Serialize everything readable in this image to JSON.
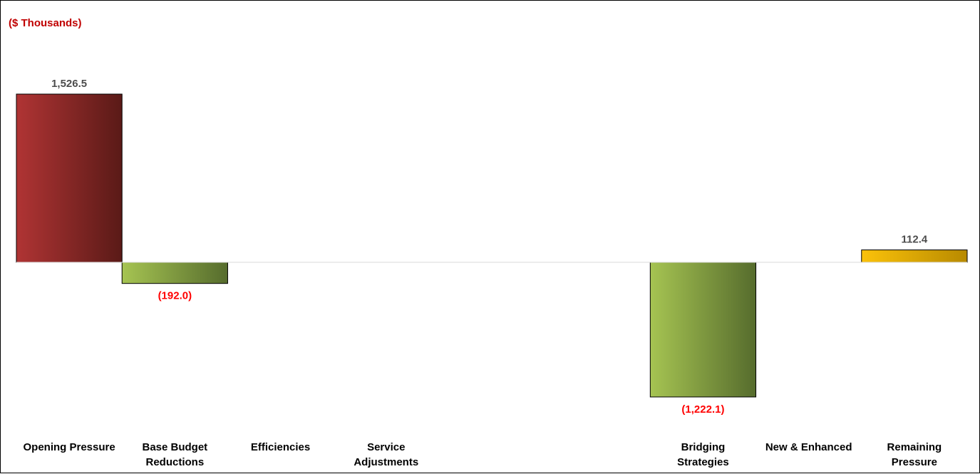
{
  "chart_data": {
    "type": "bar",
    "title": "",
    "unit_label": "($ Thousands)",
    "categories": [
      "Opening Pressure",
      "Base Budget Reductions",
      "Efficiencies",
      "Service Adjustments",
      "",
      "",
      "Bridging Strategies",
      "New & Enhanced",
      "Remaining Pressure"
    ],
    "category_lines": [
      [
        "Opening Pressure"
      ],
      [
        "Base Budget",
        "Reductions"
      ],
      [
        "Efficiencies"
      ],
      [
        "Service",
        "Adjustments"
      ],
      [],
      [],
      [
        "Bridging",
        "Strategies"
      ],
      [
        "New & Enhanced"
      ],
      [
        "Remaining",
        "Pressure"
      ]
    ],
    "values": [
      1526.5,
      -192.0,
      null,
      null,
      null,
      null,
      -1222.1,
      null,
      112.4
    ],
    "data_labels": [
      "1,526.5",
      "(192.0)",
      "",
      "",
      "",
      "",
      "(1,222.1)",
      "",
      "112.4"
    ],
    "ylim": [
      -1600,
      1800
    ],
    "xlabel": "",
    "ylabel": "",
    "grid": false,
    "legend": "none",
    "colors": {
      "pressure": [
        "#b03434",
        "#5a1a17"
      ],
      "reduction": [
        "#a6c452",
        "#566c2d"
      ],
      "remaining": [
        "#fbc20a",
        "#b88a00"
      ],
      "positive_label": "#4d4d4d",
      "negative_label": "#ff0000",
      "unit_label": "#c00000",
      "axis_line": "#d9d9d9"
    },
    "bar_kinds": [
      "pressure",
      "reduction",
      "",
      "",
      "",
      "",
      "reduction",
      "",
      "remaining"
    ]
  }
}
